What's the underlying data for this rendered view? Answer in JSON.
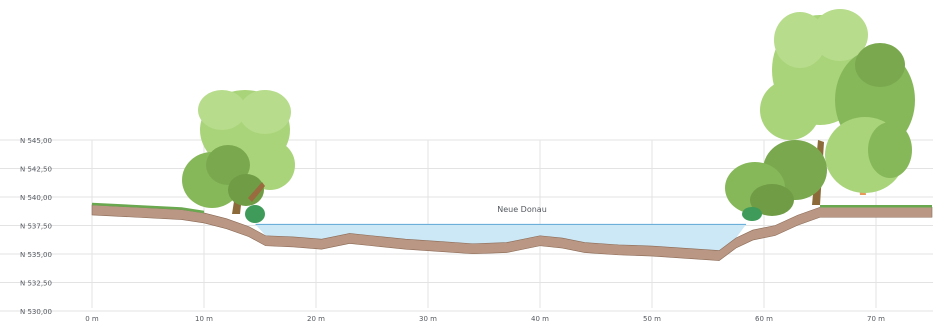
{
  "y_axis": {
    "ticks": [
      {
        "label": "N 545,00",
        "value": 545.0
      },
      {
        "label": "N 542,50",
        "value": 542.5
      },
      {
        "label": "N 540,00",
        "value": 540.0
      },
      {
        "label": "N 537,50",
        "value": 537.5
      },
      {
        "label": "N 535,00",
        "value": 535.0
      },
      {
        "label": "N 532,50",
        "value": 532.5
      },
      {
        "label": "N 530,00",
        "value": 530.0
      }
    ]
  },
  "x_axis": {
    "ticks": [
      {
        "label": "0 m",
        "value": 0
      },
      {
        "label": "10 m",
        "value": 10
      },
      {
        "label": "20 m",
        "value": 20
      },
      {
        "label": "30 m",
        "value": 30
      },
      {
        "label": "40 m",
        "value": 40
      },
      {
        "label": "50 m",
        "value": 50
      },
      {
        "label": "60 m",
        "value": 60
      },
      {
        "label": "70 m",
        "value": 70
      }
    ]
  },
  "river": {
    "label": "Neue Donau",
    "water_level": 537.6
  },
  "terrain_profile": [
    [
      0,
      539.3
    ],
    [
      4,
      539.1
    ],
    [
      8,
      538.9
    ],
    [
      10,
      538.6
    ],
    [
      12,
      538.1
    ],
    [
      14,
      537.4
    ],
    [
      15.5,
      536.6
    ],
    [
      18,
      536.5
    ],
    [
      20.5,
      536.3
    ],
    [
      23,
      536.8
    ],
    [
      25,
      536.6
    ],
    [
      28,
      536.3
    ],
    [
      31,
      536.1
    ],
    [
      34,
      535.9
    ],
    [
      37,
      536.0
    ],
    [
      40,
      536.6
    ],
    [
      42,
      536.4
    ],
    [
      44,
      536.0
    ],
    [
      47,
      535.8
    ],
    [
      50,
      535.7
    ],
    [
      53,
      535.5
    ],
    [
      56,
      535.3
    ],
    [
      57.5,
      536.4
    ],
    [
      59,
      537.1
    ],
    [
      61,
      537.5
    ],
    [
      63,
      538.4
    ],
    [
      65,
      539.1
    ],
    [
      68,
      539.1
    ],
    [
      72,
      539.1
    ],
    [
      75,
      539.1
    ]
  ],
  "colors": {
    "water": "#cce7f5",
    "water_line": "#5fa9d6",
    "soil": "#b99784",
    "soil_dark": "#8b6a55",
    "grass": "#6aa84f",
    "grid": "#e3e3e3",
    "tree_light": "#a9d47a",
    "tree_mid": "#86b85a",
    "tree_dark": "#5f8f3c",
    "trunk": "#8c6a3a",
    "bush": "#3f9b5a"
  },
  "icons": {
    "left_tree": "deciduous-tree-icon",
    "right_tree": "birch-tree-icon",
    "bush": "shrub-icon"
  }
}
